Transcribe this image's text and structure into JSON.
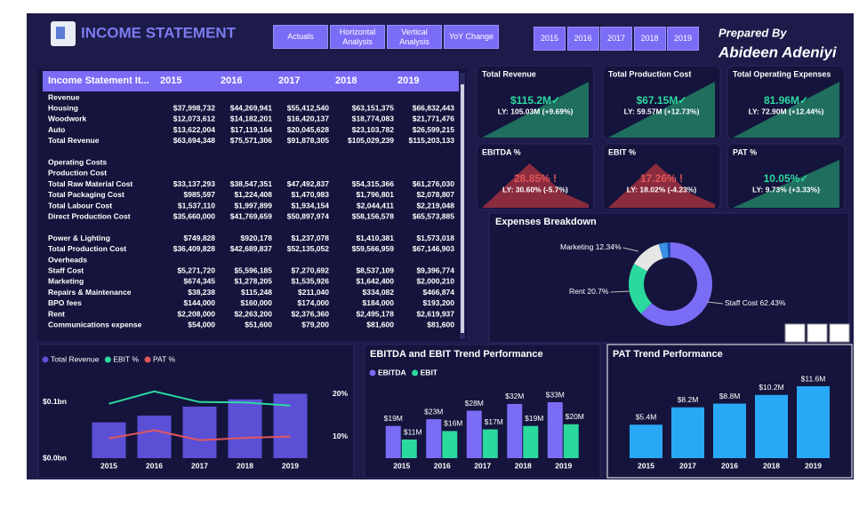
{
  "header": {
    "title": "INCOME STATEMENT",
    "buttons": [
      "Actuals",
      "Horizontal Analysis",
      "Vertical Analysis",
      "YoY Change"
    ],
    "years": [
      "2015",
      "2016",
      "2017",
      "2018",
      "2019"
    ],
    "prepared_label": "Prepared By",
    "author": "Abideen Adeniyi"
  },
  "table": {
    "columns": [
      "Income Statement It...",
      "2015",
      "2016",
      "2017",
      "2018",
      "2019"
    ],
    "groups": [
      [
        [
          "Revenue"
        ],
        [
          "Housing",
          "$37,998,732",
          "$44,269,941",
          "$55,412,540",
          "$63,151,375",
          "$66,832,443"
        ],
        [
          "Woodwork",
          "$12,073,612",
          "$14,182,201",
          "$16,420,137",
          "$18,774,083",
          "$21,771,476"
        ],
        [
          "Auto",
          "$13,622,004",
          "$17,119,164",
          "$20,045,628",
          "$23,103,782",
          "$26,599,215"
        ],
        [
          "Total Revenue",
          "$63,694,348",
          "$75,571,306",
          "$91,878,305",
          "$105,029,239",
          "$115,203,133"
        ]
      ],
      [
        [
          "Operating Costs"
        ],
        [
          "Production Cost"
        ],
        [
          "Total Raw Material Cost",
          "$33,137,293",
          "$38,547,351",
          "$47,492,837",
          "$54,315,366",
          "$61,276,030"
        ],
        [
          "Total Packaging Cost",
          "$985,597",
          "$1,224,408",
          "$1,470,983",
          "$1,796,801",
          "$2,078,807"
        ],
        [
          "Total Labour Cost",
          "$1,537,110",
          "$1,997,899",
          "$1,934,154",
          "$2,044,411",
          "$2,219,048"
        ],
        [
          "Direct Production Cost",
          "$35,660,000",
          "$41,769,659",
          "$50,897,974",
          "$58,156,578",
          "$65,573,885"
        ]
      ],
      [
        [
          "Power & Lighting",
          "$749,828",
          "$920,178",
          "$1,237,078",
          "$1,410,381",
          "$1,573,018"
        ],
        [
          "Total Production Cost",
          "$36,409,828",
          "$42,689,837",
          "$52,135,052",
          "$59,566,959",
          "$67,146,903"
        ],
        [
          "Overheads"
        ],
        [
          "Staff Cost",
          "$5,271,720",
          "$5,596,185",
          "$7,270,692",
          "$8,537,109",
          "$9,396,774"
        ],
        [
          "Marketing",
          "$674,345",
          "$1,278,205",
          "$1,535,926",
          "$1,642,400",
          "$2,000,210"
        ],
        [
          "Repairs & Maintenance",
          "$38,238",
          "$115,248",
          "$211,040",
          "$334,082",
          "$466,874"
        ],
        [
          "BPO fees",
          "$144,000",
          "$160,000",
          "$174,000",
          "$184,000",
          "$193,200"
        ],
        [
          "Rent",
          "$2,208,000",
          "$2,263,200",
          "$2,376,360",
          "$2,495,178",
          "$2,619,937"
        ],
        [
          "Communications expense",
          "$54,000",
          "$51,600",
          "$79,200",
          "$81,600",
          "$81,600"
        ]
      ]
    ]
  },
  "kpis": [
    {
      "title": "Total Revenue",
      "value": "$115.2M✓",
      "ly": "LY: 105.03M (+9.69%)",
      "color": "#2bd99f"
    },
    {
      "title": "Total Production Cost",
      "value": "$67.15M✓",
      "ly": "LY: 59.57M (+12.73%)",
      "color": "#2bd99f"
    },
    {
      "title": "Total Operating Expenses",
      "value": "81.96M✓",
      "ly": "LY: 72.90M (+12.44%)",
      "color": "#2bd99f"
    },
    {
      "title": "EBITDA %",
      "value": "28.85% !",
      "ly": "LY: 30.60% (-5.7%)",
      "color": "#e0575b"
    },
    {
      "title": "EBIT %",
      "value": "17.26% !",
      "ly": "LY: 18.02% (-4.23%)",
      "color": "#e0575b"
    },
    {
      "title": "PAT %",
      "value": "10.05%✓",
      "ly": "LY: 9.73% (+3.33%)",
      "color": "#2bd99f"
    }
  ],
  "chart_data": [
    {
      "type": "combo",
      "categories": [
        "2015",
        "2016",
        "2017",
        "2018",
        "2019"
      ],
      "series": [
        {
          "name": "Total Revenue",
          "type": "bar",
          "color": "#5b4fd6",
          "values": [
            0.064,
            0.076,
            0.092,
            0.105,
            0.115
          ]
        },
        {
          "name": "EBIT %",
          "type": "line",
          "axis": "y2",
          "color": "#2bd99f",
          "values": [
            17.7,
            20.6,
            18.1,
            18.02,
            17.26
          ]
        },
        {
          "name": "PAT %",
          "type": "line",
          "axis": "y2",
          "color": "#e0575b",
          "values": [
            9.6,
            11.5,
            9.2,
            9.73,
            10.05
          ]
        }
      ],
      "ylim": [
        0,
        0.13
      ],
      "yticks": [
        {
          "value": 0,
          "label": "$0.0bn"
        },
        {
          "value": 0.1,
          "label": "$0.1bn"
        }
      ],
      "y2lim": [
        5,
        22
      ],
      "y2ticks": [
        {
          "value": 10,
          "label": "10%"
        },
        {
          "value": 20,
          "label": "20%"
        }
      ]
    },
    {
      "type": "bar",
      "title": "EBITDA and EBIT Trend Performance",
      "categories": [
        "2015",
        "2016",
        "2017",
        "2018",
        "2019"
      ],
      "series": [
        {
          "name": "EBITDA",
          "color": "#7b6cf6",
          "values": [
            19,
            23,
            28,
            32,
            33
          ],
          "value_labels": [
            "$19M",
            "$23M",
            "$28M",
            "$32M",
            "$33M"
          ]
        },
        {
          "name": "EBIT",
          "color": "#2bd99f",
          "values": [
            11,
            16,
            17,
            19,
            20
          ],
          "value_labels": [
            "$11M",
            "$16M",
            "$17M",
            "$19M",
            "$20M"
          ]
        }
      ]
    },
    {
      "type": "bar",
      "title": "PAT Trend Performance",
      "categories": [
        "2015",
        "2017",
        "2016",
        "2018",
        "2019"
      ],
      "color": "#29a8f5",
      "values": [
        5.4,
        8.2,
        8.8,
        10.2,
        11.6
      ],
      "value_labels": [
        "$5.4M",
        "$8.2M",
        "$8.8M",
        "$10.2M",
        "$11.6M"
      ]
    },
    {
      "type": "donut",
      "title": "Expenses Breakdown",
      "categories": [
        "Staff Cost",
        "Rent",
        "Marketing",
        null,
        null
      ],
      "values": [
        62.43,
        20.7,
        12.34,
        3.3,
        1.23
      ],
      "value_labels": [
        "62.43%",
        "20.7%",
        "12.34%",
        null,
        null
      ],
      "colors": [
        "#7b6cf6",
        "#2bd99f",
        "#e6e6e6",
        "#3a8ee6",
        "#1f4fb0"
      ]
    }
  ]
}
